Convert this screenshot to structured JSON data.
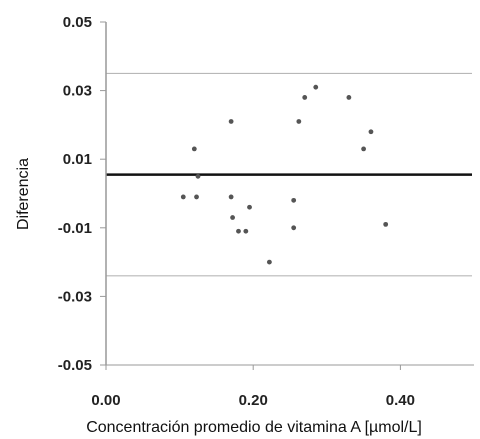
{
  "chart_data": {
    "type": "scatter",
    "title": "",
    "xlabel": "Concentración promedio de vitamina A [µmol/L]",
    "ylabel": "Diferencia",
    "xlim": [
      0.0,
      0.5
    ],
    "ylim": [
      -0.05,
      0.05
    ],
    "x_ticks": [
      "0.00",
      "0.20",
      "0.40"
    ],
    "y_ticks": [
      "0.05",
      "0.03",
      "0.01",
      "-0.01",
      "-0.03",
      "-0.05"
    ],
    "grid": false,
    "points": [
      {
        "x": 0.105,
        "y": -0.001
      },
      {
        "x": 0.12,
        "y": 0.013
      },
      {
        "x": 0.123,
        "y": -0.001
      },
      {
        "x": 0.125,
        "y": 0.005
      },
      {
        "x": 0.17,
        "y": 0.021
      },
      {
        "x": 0.17,
        "y": -0.001
      },
      {
        "x": 0.172,
        "y": -0.007
      },
      {
        "x": 0.18,
        "y": -0.011
      },
      {
        "x": 0.19,
        "y": -0.011
      },
      {
        "x": 0.195,
        "y": -0.004
      },
      {
        "x": 0.222,
        "y": -0.02
      },
      {
        "x": 0.255,
        "y": -0.002
      },
      {
        "x": 0.255,
        "y": -0.01
      },
      {
        "x": 0.262,
        "y": 0.021
      },
      {
        "x": 0.27,
        "y": 0.028
      },
      {
        "x": 0.285,
        "y": 0.031
      },
      {
        "x": 0.33,
        "y": 0.028
      },
      {
        "x": 0.35,
        "y": 0.013
      },
      {
        "x": 0.36,
        "y": 0.018
      },
      {
        "x": 0.38,
        "y": -0.009
      }
    ],
    "reference_lines": [
      {
        "role": "mean-difference",
        "y": 0.0055,
        "color": "#111111"
      },
      {
        "role": "upper-limit",
        "y": 0.035,
        "color": "#b8b8b8"
      },
      {
        "role": "lower-limit",
        "y": -0.024,
        "color": "#b8b8b8"
      }
    ],
    "colors": {
      "points": "#555555",
      "axis": "#999999"
    }
  }
}
